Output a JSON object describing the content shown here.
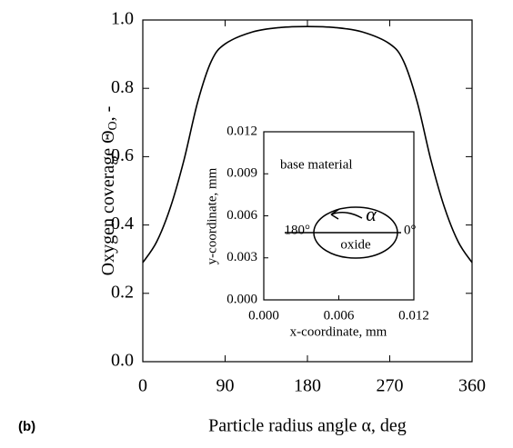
{
  "panel_label": "(b)",
  "chart_data": [
    {
      "type": "line",
      "xlabel": "Particle radius angle α, deg",
      "ylabel": [
        "Oxygen coverage Θ",
        "O",
        ", -"
      ],
      "x": [
        0,
        15,
        30,
        45,
        60,
        75,
        90,
        120,
        150,
        180,
        210,
        240,
        270,
        285,
        300,
        315,
        330,
        345,
        360
      ],
      "values": [
        0.29,
        0.35,
        0.45,
        0.59,
        0.76,
        0.88,
        0.93,
        0.965,
        0.978,
        0.981,
        0.978,
        0.965,
        0.93,
        0.88,
        0.76,
        0.59,
        0.45,
        0.35,
        0.29
      ],
      "color": "#000000",
      "xlim": [
        0,
        360
      ],
      "xticks": [
        0,
        90,
        180,
        270,
        360
      ],
      "ylim": [
        0,
        1
      ],
      "yticks": [
        {
          "value": 0,
          "label": "0.0"
        },
        0.2,
        0.4,
        0.6,
        0.8,
        {
          "value": 1,
          "label": "1.0"
        }
      ]
    },
    {
      "type": "inset",
      "xlabel": "x-coordinate, mm",
      "ylabel": "y-coordinate, mm",
      "xlim": [
        0,
        0.012
      ],
      "xticks": [
        {
          "value": 0,
          "label": "0.000"
        },
        0.006,
        0.012
      ],
      "ylim": [
        0,
        0.012
      ],
      "yticks": [
        {
          "value": 0,
          "label": "0.000"
        },
        0.003,
        0.006,
        0.009,
        0.012
      ],
      "annotations": [
        "base material",
        "α",
        "180°",
        "0°",
        "oxide"
      ]
    }
  ]
}
